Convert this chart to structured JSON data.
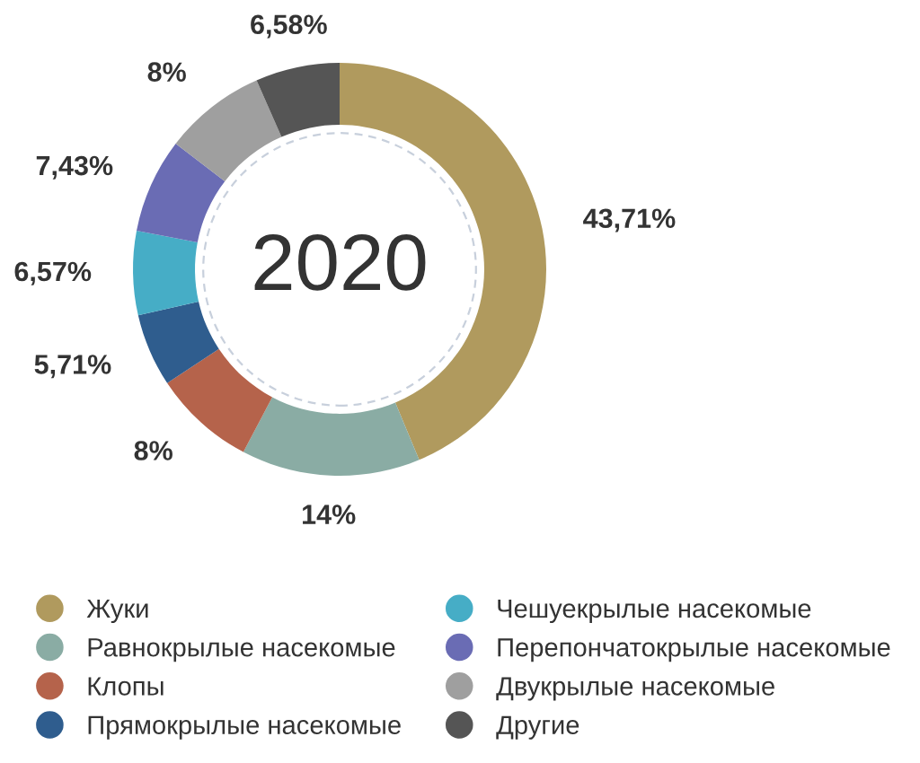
{
  "chart_data": {
    "type": "donut",
    "title": "2020",
    "categories": [
      "Жуки",
      "Равнокрылые насекомые",
      "Клопы",
      "Прямокрылые насекомые",
      "Чешуекрылые насекомые",
      "Перепончатокрылые насекомые",
      "Двукрылые насекомые",
      "Другие"
    ],
    "values": [
      43.71,
      14,
      8,
      5.71,
      6.57,
      7.43,
      8,
      6.58
    ],
    "value_labels": [
      "43,71%",
      "14%",
      "8%",
      "5,71%",
      "6,57%",
      "7,43%",
      "8%",
      "6,58%"
    ],
    "colors": [
      "#b09a5e",
      "#8aaca4",
      "#b5634b",
      "#2f5d8e",
      "#46adc6",
      "#6a6cb4",
      "#9f9f9f",
      "#555555"
    ],
    "legend": "bottom"
  }
}
